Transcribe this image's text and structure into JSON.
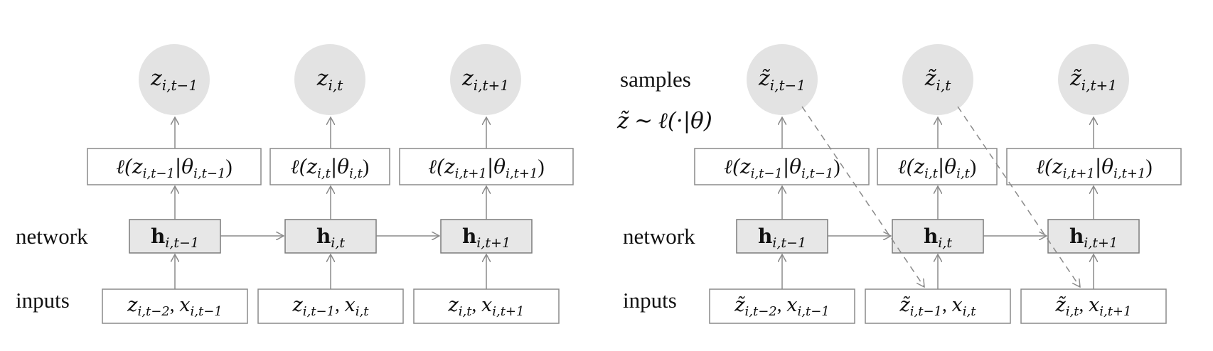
{
  "left": {
    "labels": {
      "network": "network",
      "inputs": "inputs"
    },
    "outputs": [
      {
        "base": "z",
        "sub": "i,t−1"
      },
      {
        "base": "z",
        "sub": "i,t"
      },
      {
        "base": "z",
        "sub": "i,t+1"
      }
    ],
    "likelihoods": [
      {
        "pre": "ℓ(z",
        "sub1": "i,t−1",
        "mid": "|θ",
        "sub2": "i,t−1",
        "post": ")"
      },
      {
        "pre": "ℓ(z",
        "sub1": "i,t",
        "mid": "|θ",
        "sub2": "i,t",
        "post": ")"
      },
      {
        "pre": "ℓ(z",
        "sub1": "i,t+1",
        "mid": "|θ",
        "sub2": "i,t+1",
        "post": ")"
      }
    ],
    "hidden": [
      {
        "base": "h",
        "sub": "i,t−1"
      },
      {
        "base": "h",
        "sub": "i,t"
      },
      {
        "base": "h",
        "sub": "i,t+1"
      }
    ],
    "inputs": [
      {
        "a": "z",
        "sub_a": "i,t−2",
        "sep": ", ",
        "b": "x",
        "sub_b": "i,t−1"
      },
      {
        "a": "z",
        "sub_a": "i,t−1",
        "sep": ", ",
        "b": "x",
        "sub_b": "i,t"
      },
      {
        "a": "z",
        "sub_a": "i,t",
        "sep": ", ",
        "b": "x",
        "sub_b": "i,t+1"
      }
    ]
  },
  "right": {
    "labels": {
      "samples": "samples",
      "network": "network",
      "inputs": "inputs"
    },
    "sampling_formula": {
      "lhs": "z̃",
      "op": " ∼ ",
      "rhs": "ℓ(·|θ)"
    },
    "outputs": [
      {
        "base": "z̃",
        "sub": "i,t−1"
      },
      {
        "base": "z̃",
        "sub": "i,t"
      },
      {
        "base": "z̃",
        "sub": "i,t+1"
      }
    ],
    "likelihoods": [
      {
        "pre": "ℓ(z",
        "sub1": "i,t−1",
        "mid": "|θ",
        "sub2": "i,t−1",
        "post": ")"
      },
      {
        "pre": "ℓ(z",
        "sub1": "i,t",
        "mid": "|θ",
        "sub2": "i,t",
        "post": ")"
      },
      {
        "pre": "ℓ(z",
        "sub1": "i,t+1",
        "mid": "|θ",
        "sub2": "i,t+1",
        "post": ")"
      }
    ],
    "hidden": [
      {
        "base": "h",
        "sub": "i,t−1"
      },
      {
        "base": "h",
        "sub": "i,t"
      },
      {
        "base": "h",
        "sub": "i,t+1"
      }
    ],
    "inputs": [
      {
        "a": "z̃",
        "sub_a": "i,t−2",
        "sep": ", ",
        "b": "x",
        "sub_b": "i,t−1"
      },
      {
        "a": "z̃",
        "sub_a": "i,t−1",
        "sep": ", ",
        "b": "x",
        "sub_b": "i,t"
      },
      {
        "a": "z̃",
        "sub_a": "i,t",
        "sep": ", ",
        "b": "x",
        "sub_b": "i,t+1"
      }
    ]
  }
}
